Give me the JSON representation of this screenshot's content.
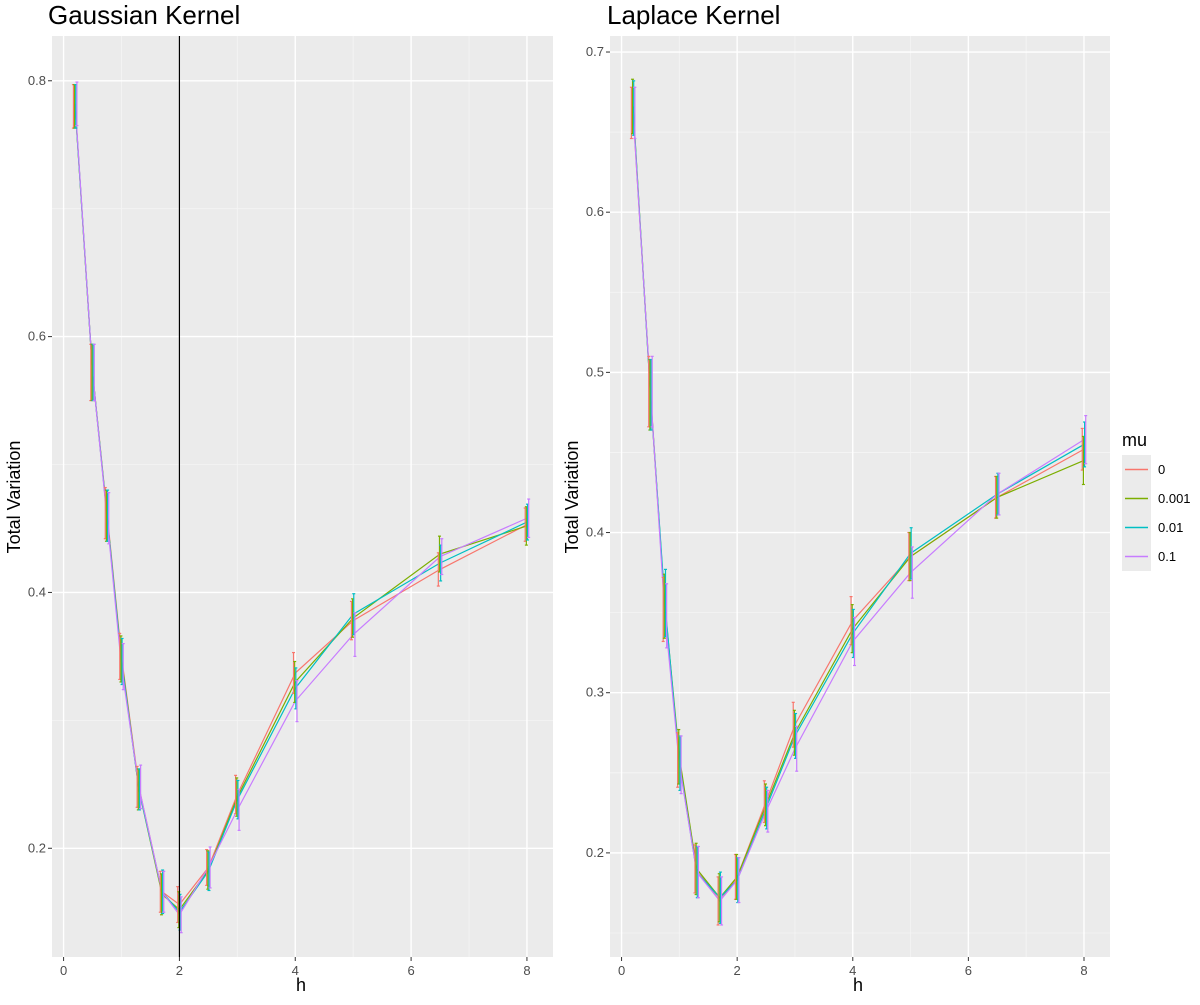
{
  "chart_data": [
    {
      "type": "line",
      "title": "Gaussian Kernel",
      "xlabel": "h",
      "ylabel": "Total Variation",
      "xlim": [
        -0.2,
        8.45
      ],
      "ylim": [
        0.115,
        0.835
      ],
      "xticks": [
        0,
        2,
        4,
        6,
        8
      ],
      "xtick_labels": [
        "0",
        "2",
        "4",
        "6",
        "8"
      ],
      "yticks": [
        0.2,
        0.4,
        0.6,
        0.8
      ],
      "ytick_labels": [
        "0.2",
        "0.4",
        "0.6",
        "0.8"
      ],
      "grid": true,
      "vline": 2,
      "x": [
        0.2,
        0.5,
        0.75,
        1.0,
        1.3,
        1.7,
        2.0,
        2.5,
        3.0,
        4.0,
        5.0,
        6.5,
        8.0
      ],
      "series": [
        {
          "name": "0",
          "color": "#F8766D",
          "values": [
            0.78,
            0.572,
            0.462,
            0.35,
            0.248,
            0.166,
            0.156,
            0.185,
            0.242,
            0.337,
            0.378,
            0.418,
            0.453
          ],
          "errors": [
            0.017,
            0.022,
            0.02,
            0.018,
            0.016,
            0.016,
            0.014,
            0.014,
            0.015,
            0.016,
            0.015,
            0.013,
            0.013
          ]
        },
        {
          "name": "0.001",
          "color": "#7CAE00",
          "values": [
            0.78,
            0.572,
            0.46,
            0.348,
            0.246,
            0.164,
            0.152,
            0.183,
            0.24,
            0.33,
            0.38,
            0.43,
            0.452
          ],
          "errors": [
            0.017,
            0.022,
            0.02,
            0.018,
            0.016,
            0.016,
            0.014,
            0.015,
            0.015,
            0.016,
            0.015,
            0.014,
            0.015
          ]
        },
        {
          "name": "0.01",
          "color": "#00BFC4",
          "values": [
            0.78,
            0.572,
            0.46,
            0.346,
            0.246,
            0.166,
            0.15,
            0.182,
            0.238,
            0.325,
            0.383,
            0.423,
            0.455
          ],
          "errors": [
            0.017,
            0.022,
            0.02,
            0.018,
            0.016,
            0.017,
            0.014,
            0.015,
            0.015,
            0.016,
            0.016,
            0.014,
            0.014
          ]
        },
        {
          "name": "0.1",
          "color": "#C77CFF",
          "values": [
            0.782,
            0.572,
            0.458,
            0.342,
            0.248,
            0.166,
            0.148,
            0.185,
            0.23,
            0.315,
            0.367,
            0.428,
            0.458
          ],
          "errors": [
            0.017,
            0.022,
            0.02,
            0.018,
            0.017,
            0.016,
            0.014,
            0.016,
            0.016,
            0.016,
            0.017,
            0.014,
            0.015
          ]
        }
      ]
    },
    {
      "type": "line",
      "title": "Laplace Kernel",
      "xlabel": "h",
      "ylabel": "Total Variation",
      "xlim": [
        -0.2,
        8.45
      ],
      "ylim": [
        0.135,
        0.71
      ],
      "xticks": [
        0,
        2,
        4,
        6,
        8
      ],
      "xtick_labels": [
        "0",
        "2",
        "4",
        "6",
        "8"
      ],
      "yticks": [
        0.2,
        0.3,
        0.4,
        0.5,
        0.6,
        0.7
      ],
      "ytick_labels": [
        "0.2",
        "0.3",
        "0.4",
        "0.5",
        "0.6",
        "0.7"
      ],
      "grid": true,
      "x": [
        0.2,
        0.5,
        0.75,
        1.0,
        1.3,
        1.7,
        2.0,
        2.5,
        3.0,
        4.0,
        5.0,
        6.5,
        8.0
      ],
      "series": [
        {
          "name": "0",
          "color": "#F8766D",
          "values": [
            0.662,
            0.488,
            0.352,
            0.258,
            0.19,
            0.17,
            0.185,
            0.232,
            0.28,
            0.345,
            0.385,
            0.422,
            0.452
          ],
          "errors": [
            0.016,
            0.022,
            0.02,
            0.017,
            0.015,
            0.015,
            0.014,
            0.013,
            0.014,
            0.015,
            0.015,
            0.013,
            0.013
          ]
        },
        {
          "name": "0.001",
          "color": "#7CAE00",
          "values": [
            0.666,
            0.486,
            0.354,
            0.26,
            0.19,
            0.172,
            0.185,
            0.23,
            0.275,
            0.34,
            0.385,
            0.422,
            0.445
          ],
          "errors": [
            0.017,
            0.022,
            0.02,
            0.017,
            0.016,
            0.015,
            0.014,
            0.013,
            0.014,
            0.015,
            0.015,
            0.013,
            0.015
          ]
        },
        {
          "name": "0.01",
          "color": "#00BFC4",
          "values": [
            0.665,
            0.486,
            0.356,
            0.256,
            0.188,
            0.172,
            0.183,
            0.228,
            0.273,
            0.337,
            0.387,
            0.424,
            0.455
          ],
          "errors": [
            0.017,
            0.022,
            0.021,
            0.017,
            0.016,
            0.016,
            0.014,
            0.013,
            0.014,
            0.015,
            0.016,
            0.013,
            0.014
          ]
        },
        {
          "name": "0.1",
          "color": "#C77CFF",
          "values": [
            0.662,
            0.488,
            0.348,
            0.255,
            0.188,
            0.17,
            0.183,
            0.226,
            0.265,
            0.332,
            0.375,
            0.424,
            0.458
          ],
          "errors": [
            0.016,
            0.022,
            0.02,
            0.018,
            0.016,
            0.015,
            0.014,
            0.013,
            0.014,
            0.015,
            0.016,
            0.013,
            0.015
          ]
        }
      ]
    }
  ],
  "legend": {
    "title": "mu",
    "placement": "right",
    "entries": [
      {
        "label": "0",
        "color": "#F8766D"
      },
      {
        "label": "0.001",
        "color": "#7CAE00"
      },
      {
        "label": "0.01",
        "color": "#00BFC4"
      },
      {
        "label": "0.1",
        "color": "#C77CFF"
      }
    ]
  },
  "style": {
    "panel_background": "#EBEBEB",
    "major_grid_color": "#FFFFFF",
    "minor_grid_color": "#F5F5F5",
    "vline_color": "#000000"
  }
}
